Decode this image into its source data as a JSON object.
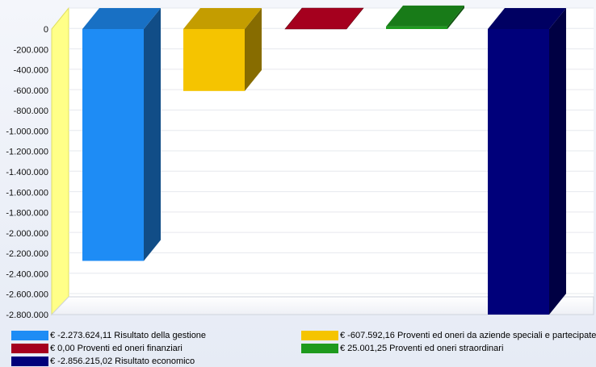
{
  "chart_data": {
    "type": "bar",
    "title": "",
    "xlabel": "",
    "ylabel": "",
    "ylim": [
      -2800000,
      0
    ],
    "yticks": [
      0,
      -200000,
      -400000,
      -600000,
      -800000,
      -1000000,
      -1200000,
      -1400000,
      -1600000,
      -1800000,
      -2000000,
      -2200000,
      -2400000,
      -2600000,
      -2800000
    ],
    "ytick_labels": [
      "0",
      "-200.000",
      "-400.000",
      "-600.000",
      "-800.000",
      "-1.000.000",
      "-1.200.000",
      "-1.400.000",
      "-1.600.000",
      "-1.800.000",
      "-2.000.000",
      "-2.200.000",
      "-2.400.000",
      "-2.600.000",
      "-2.800.000"
    ],
    "grid": true,
    "legend_position": "bottom",
    "series": [
      {
        "name": "€ -2.273.624,11 Risultato della gestione",
        "value": -2273624.11,
        "color": "#1e8cf5"
      },
      {
        "name": "€ -607.592,16 Proventi ed oneri da aziende speciali e partecipate",
        "value": -607592.16,
        "color": "#f5c400"
      },
      {
        "name": "€  0,00 Proventi ed oneri finanziari",
        "value": 0.0,
        "color": "#a5001e"
      },
      {
        "name": "€  25.001,25 Proventi ed oneri straordinari",
        "value": 25001.25,
        "color": "#1e9a1e"
      },
      {
        "name": "€ -2.856.215,02 Risultato economico",
        "value": -2856215.02,
        "color": "#00007a"
      }
    ]
  }
}
